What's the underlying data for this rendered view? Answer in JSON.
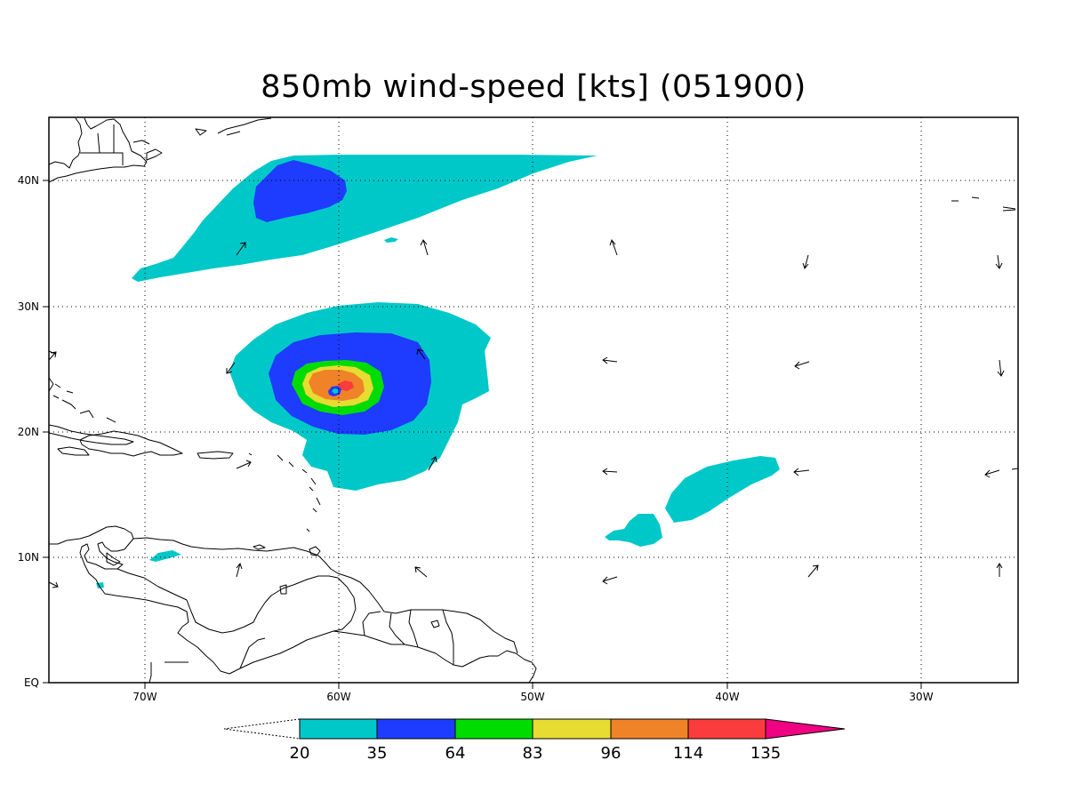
{
  "title": "850mb wind-speed [kts] (051900)",
  "map": {
    "lon_labels": [
      "70W",
      "60W",
      "50W",
      "40W",
      "30W"
    ],
    "lat_labels": [
      "40N",
      "30N",
      "20N",
      "10N",
      "EQ"
    ]
  },
  "colorbar": {
    "levels": [
      "20",
      "35",
      "64",
      "83",
      "96",
      "114",
      "135"
    ],
    "colors": {
      "below": "#ffffff",
      "c20": "#00c8c8",
      "c35": "#1e3cff",
      "c64": "#00dc00",
      "c83": "#e6dc32",
      "c96": "#f08228",
      "c114": "#fa3c3c",
      "c135": "#f00082"
    }
  }
}
